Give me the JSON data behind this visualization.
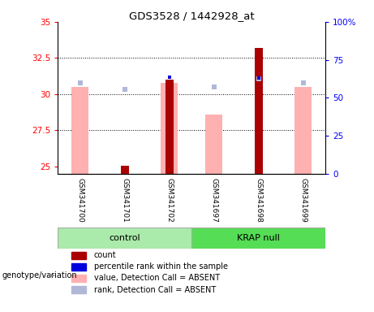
{
  "title": "GDS3528 / 1442928_at",
  "samples": [
    "GSM341700",
    "GSM341701",
    "GSM341702",
    "GSM341697",
    "GSM341698",
    "GSM341699"
  ],
  "ylim_left": [
    24.5,
    35.0
  ],
  "ylim_right": [
    0,
    100
  ],
  "yticks_left": [
    25,
    27.5,
    30,
    32.5,
    35
  ],
  "ytick_labels_left": [
    "25",
    "27.5",
    "30",
    "32.5",
    "35"
  ],
  "yticks_right": [
    0,
    25,
    50,
    75,
    100
  ],
  "ytick_labels_right": [
    "0",
    "25",
    "50",
    "75",
    "100%"
  ],
  "gridlines": [
    27.5,
    30.0,
    32.5
  ],
  "count_values": [
    null,
    25.05,
    31.0,
    null,
    33.2,
    null
  ],
  "count_color": "#AA0000",
  "rank_values": [
    null,
    null,
    31.15,
    null,
    31.1,
    null
  ],
  "rank_color": "#0000DD",
  "absent_value_values": [
    30.5,
    null,
    30.8,
    28.6,
    null,
    30.5
  ],
  "absent_value_color": "#FFB0B0",
  "absent_rank_values": [
    30.75,
    30.35,
    null,
    30.5,
    31.05,
    30.75
  ],
  "absent_rank_color": "#B0B8D8",
  "wide_bar_width": 0.38,
  "narrow_bar_width": 0.18,
  "light_green": "#AAEAAA",
  "med_green": "#55DD55",
  "gray_bg": "#C8C8C8",
  "legend_items": [
    {
      "color": "#AA0000",
      "label": "count"
    },
    {
      "color": "#0000DD",
      "label": "percentile rank within the sample"
    },
    {
      "color": "#FFB0B0",
      "label": "value, Detection Call = ABSENT"
    },
    {
      "color": "#B0B8D8",
      "label": "rank, Detection Call = ABSENT"
    }
  ]
}
